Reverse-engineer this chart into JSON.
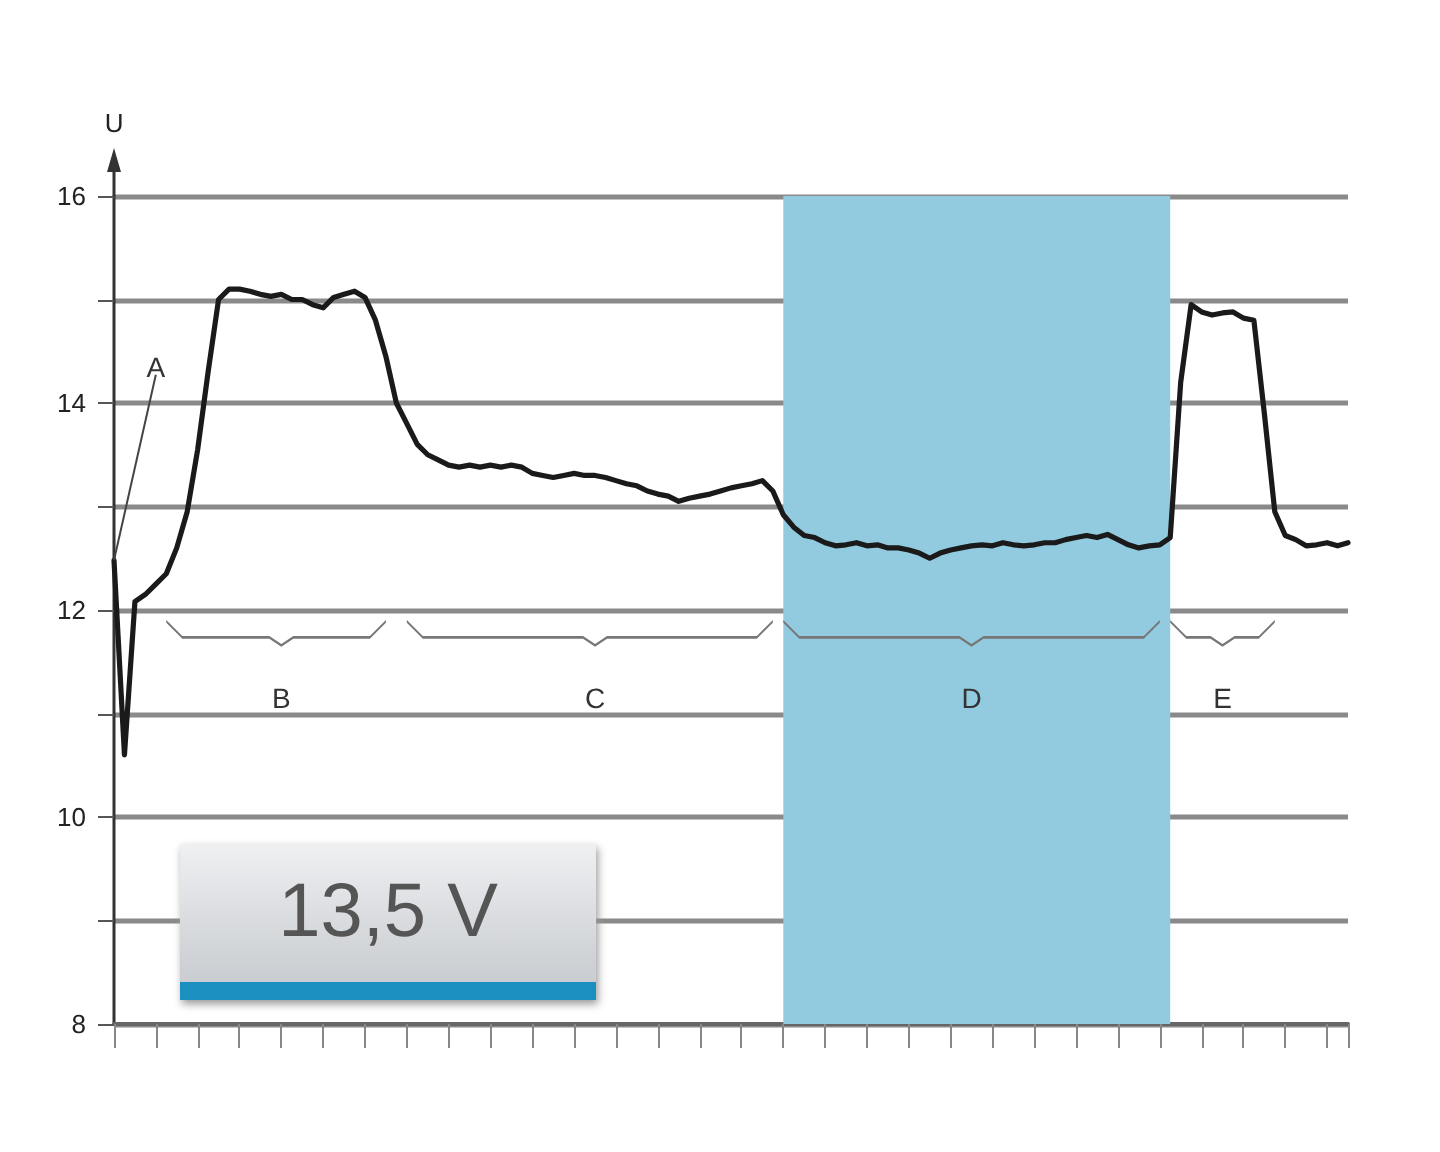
{
  "chart_data": {
    "type": "line",
    "ylabel": "U",
    "categories": [
      null,
      null,
      null,
      null,
      null,
      null,
      null,
      null,
      null,
      null,
      null,
      null,
      null,
      null,
      null,
      null,
      null,
      null,
      null,
      null,
      null,
      null,
      null,
      null,
      null,
      null,
      null,
      null,
      null,
      null,
      null,
      null,
      null,
      null,
      null,
      null,
      null,
      null,
      null,
      null,
      null,
      null,
      null,
      null,
      null,
      null,
      null,
      null,
      null,
      null,
      null,
      null,
      null,
      null,
      null,
      null,
      null,
      null,
      null,
      null,
      null,
      null,
      null,
      null,
      null,
      null,
      null,
      null,
      null,
      null,
      null,
      null,
      null,
      null,
      null,
      null,
      null,
      null,
      null,
      null,
      null,
      null,
      null,
      null,
      null,
      null,
      null,
      null,
      null,
      null,
      null,
      null,
      null,
      null,
      null,
      null,
      null,
      null,
      null,
      null,
      null,
      null,
      null,
      null,
      null,
      null,
      null,
      null,
      null,
      null,
      null,
      null,
      null,
      null,
      null,
      null,
      null,
      null,
      null
    ],
    "series": [
      {
        "color": "#1a1a1a",
        "values": [
          12.48,
          10.6,
          12.08,
          12.15,
          12.25,
          12.35,
          12.6,
          12.95,
          13.55,
          14.3,
          15.0,
          15.1,
          15.1,
          15.08,
          15.05,
          15.03,
          15.05,
          15.0,
          15.0,
          14.95,
          14.92,
          15.02,
          15.05,
          15.08,
          15.02,
          14.8,
          14.45,
          14.0,
          13.8,
          13.6,
          13.5,
          13.45,
          13.4,
          13.38,
          13.4,
          13.38,
          13.4,
          13.38,
          13.4,
          13.38,
          13.32,
          13.3,
          13.28,
          13.3,
          13.32,
          13.3,
          13.3,
          13.28,
          13.25,
          13.22,
          13.2,
          13.15,
          13.12,
          13.1,
          13.05,
          13.08,
          13.1,
          13.12,
          13.15,
          13.18,
          13.2,
          13.22,
          13.25,
          13.15,
          12.92,
          12.8,
          12.72,
          12.7,
          12.65,
          12.62,
          12.63,
          12.65,
          12.62,
          12.63,
          12.6,
          12.6,
          12.58,
          12.55,
          12.5,
          12.55,
          12.58,
          12.6,
          12.62,
          12.63,
          12.62,
          12.65,
          12.63,
          12.62,
          12.63,
          12.65,
          12.65,
          12.68,
          12.7,
          12.72,
          12.7,
          12.73,
          12.68,
          12.63,
          12.6,
          12.62,
          12.63,
          12.7,
          14.2,
          14.95,
          14.88,
          14.85,
          14.87,
          14.88,
          14.82,
          14.8,
          13.9,
          12.95,
          12.72,
          12.68,
          12.62,
          12.63,
          12.65,
          12.62,
          12.65
        ]
      }
    ],
    "ylim": [
      8,
      16
    ],
    "yticks": [
      8,
      {
        "value": 9,
        "label": null
      },
      10,
      {
        "value": 11,
        "label": null
      },
      12,
      {
        "value": 13,
        "label": null
      },
      14,
      {
        "value": 15,
        "label": null
      },
      16
    ],
    "tick_labels": "y",
    "grid": "y",
    "line_style": "solid",
    "annotations": [
      "A",
      "B",
      "C",
      "D",
      "E",
      "13,5 V"
    ]
  }
}
